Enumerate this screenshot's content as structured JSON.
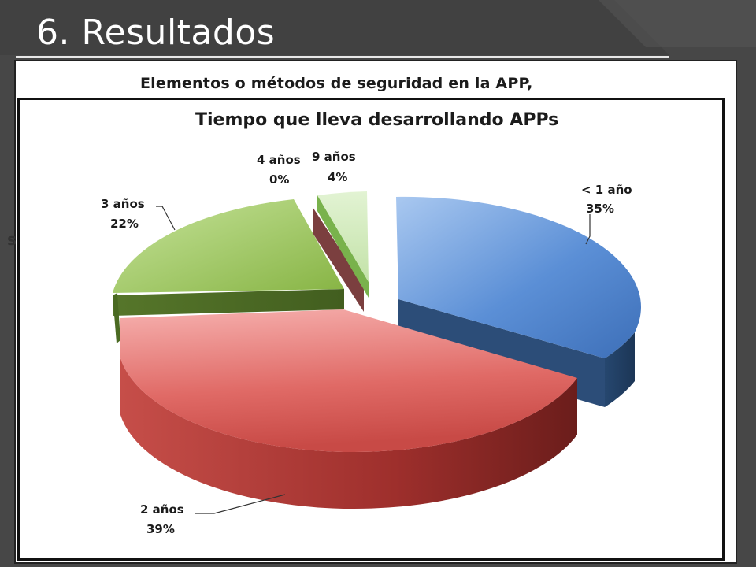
{
  "slide": {
    "title": "6. Resultados",
    "back_chart_title": "Elementos o métodos de seguridad en la APP,",
    "back_fragment": "s"
  },
  "colors": {
    "background": "#4a4a4a",
    "panel": "#ffffff"
  },
  "chart_data": {
    "type": "pie",
    "style": "3d-exploded",
    "title": "Tiempo que lleva desarrollando APPs",
    "legend": "none",
    "slices": [
      {
        "label": "< 1 año",
        "value_label": "35%",
        "value": 35,
        "color": "#5b8fd6"
      },
      {
        "label": "2 años",
        "value_label": "39%",
        "value": 39,
        "color": "#e06a66"
      },
      {
        "label": "3 años",
        "value_label": "22%",
        "value": 22,
        "color": "#93bf4f"
      },
      {
        "label": "4 años",
        "value_label": "0%",
        "value": 0,
        "color": "#7b3f3f"
      },
      {
        "label": "9  años",
        "value_label": "4%",
        "value": 4,
        "color": "#c9e8b0"
      }
    ]
  }
}
